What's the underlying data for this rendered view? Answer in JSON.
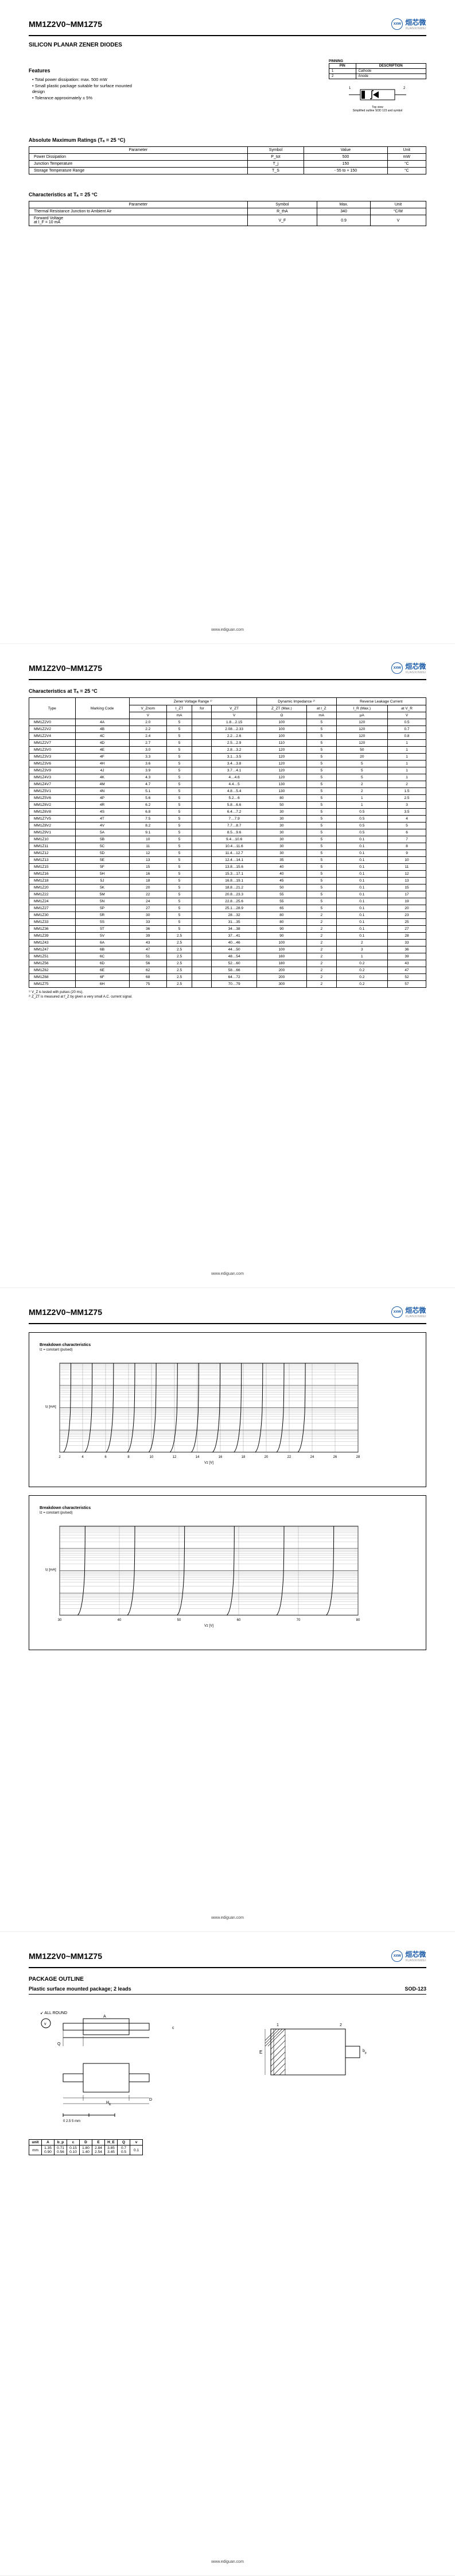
{
  "doc": {
    "part_range": "MM1Z2V0~MM1Z75",
    "subtitle": "SILICON PLANAR ZENER DIODES",
    "brand_cn": "烜芯微",
    "brand_en": "XUANXINWEI",
    "brand_short": "xxw",
    "footer": "www.ediguan.com"
  },
  "features": {
    "title": "Features",
    "items": [
      "Total power dissipation: max. 500 mW",
      "Small plastic package suitable for surface mounted design",
      "Tolerance approximately ± 5%"
    ]
  },
  "pinning": {
    "title": "PINNING",
    "header": [
      "PIN",
      "DESCRIPTION"
    ],
    "rows": [
      [
        "1",
        "Cathode"
      ],
      [
        "2",
        "Anode"
      ]
    ],
    "caption1": "Top view",
    "caption2": "Simplified outline SOD 123 and symbol"
  },
  "abs_max": {
    "title": "Absolute Maximum Ratings (Tₐ = 25 °C)",
    "header": [
      "Parameter",
      "Symbol",
      "Value",
      "Unit"
    ],
    "rows": [
      [
        "Power Dissipation",
        "P_tot",
        "500",
        "mW"
      ],
      [
        "Junction Temperature",
        "T_j",
        "150",
        "°C"
      ],
      [
        "Storage Temperature Range",
        "T_S",
        "- 55 to + 150",
        "°C"
      ]
    ]
  },
  "char25": {
    "title": "Characteristics at Tₐ = 25 °C",
    "header": [
      "Parameter",
      "Symbol",
      "Max.",
      "Unit"
    ],
    "rows": [
      [
        "Thermal Resistance Junction to Ambient Air",
        "R_thA",
        "340",
        "°C/W"
      ],
      [
        "Forward Voltage\nat I_F = 10 mA",
        "V_F",
        "0.9",
        "V"
      ]
    ]
  },
  "char_table": {
    "title": "Characteristics at Tₐ = 25 °C",
    "top_header": [
      "Type",
      "Marking Code",
      "Zener Voltage Range ¹⁾",
      "Dynamic Impedance ²⁾",
      "Reverse Leakage Current"
    ],
    "sub_header": [
      "",
      "",
      "V_Znom",
      "I_ZT",
      "for",
      "V_ZT",
      "Z_ZT (Max.)",
      "at I_Z",
      "I_R (Max.)",
      "at V_R"
    ],
    "units": [
      "",
      "",
      "V",
      "mA",
      "",
      "V",
      "Ω",
      "mA",
      "µA",
      "V"
    ],
    "rows": [
      [
        "MM1Z2V0",
        "4A",
        "2.0",
        "5",
        "",
        "1.8…2.15",
        "100",
        "5",
        "120",
        "0.5"
      ],
      [
        "MM1Z2V2",
        "4B",
        "2.2",
        "5",
        "",
        "2.08…2.33",
        "100",
        "5",
        "120",
        "0.7"
      ],
      [
        "MM1Z2V4",
        "4C",
        "2.4",
        "5",
        "",
        "2.2…2.6",
        "100",
        "5",
        "120",
        "0.8"
      ],
      [
        "MM1Z2V7",
        "4D",
        "2.7",
        "5",
        "",
        "2.5…2.9",
        "110",
        "5",
        "120",
        "1"
      ],
      [
        "MM1Z3V0",
        "4E",
        "3.0",
        "5",
        "",
        "2.8…3.2",
        "120",
        "5",
        "50",
        "1"
      ],
      [
        "MM1Z3V3",
        "4F",
        "3.3",
        "5",
        "",
        "3.1…3.5",
        "120",
        "5",
        "20",
        "1"
      ],
      [
        "MM1Z3V6",
        "4H",
        "3.6",
        "5",
        "",
        "3.4…3.8",
        "120",
        "5",
        "5",
        "1"
      ],
      [
        "MM1Z3V9",
        "4J",
        "3.9",
        "5",
        "",
        "3.7…4.1",
        "120",
        "5",
        "5",
        "1"
      ],
      [
        "MM1Z4V3",
        "4K",
        "4.3",
        "5",
        "",
        "4…4.6",
        "120",
        "5",
        "5",
        "1"
      ],
      [
        "MM1Z4V7",
        "4M",
        "4.7",
        "5",
        "",
        "4.4…5",
        "130",
        "5",
        "2",
        "2"
      ],
      [
        "MM1Z5V1",
        "4N",
        "5.1",
        "5",
        "",
        "4.8…5.4",
        "130",
        "5",
        "2",
        "1.5"
      ],
      [
        "MM1Z5V6",
        "4P",
        "5.6",
        "5",
        "",
        "5.2…6",
        "80",
        "5",
        "1",
        "2.5"
      ],
      [
        "MM1Z6V2",
        "4R",
        "6.2",
        "5",
        "",
        "5.8…6.6",
        "50",
        "5",
        "1",
        "3"
      ],
      [
        "MM1Z6V8",
        "4S",
        "6.8",
        "5",
        "",
        "6.4…7.2",
        "30",
        "5",
        "0.5",
        "3.5"
      ],
      [
        "MM1Z7V5",
        "4T",
        "7.5",
        "5",
        "",
        "7…7.9",
        "30",
        "5",
        "0.5",
        "4"
      ],
      [
        "MM1Z8V2",
        "4V",
        "8.2",
        "5",
        "",
        "7.7…8.7",
        "30",
        "5",
        "0.5",
        "5"
      ],
      [
        "MM1Z9V1",
        "5A",
        "9.1",
        "5",
        "",
        "8.5…9.6",
        "30",
        "5",
        "0.5",
        "6"
      ],
      [
        "MM1Z10",
        "5B",
        "10",
        "5",
        "",
        "9.4…10.6",
        "30",
        "5",
        "0.1",
        "7"
      ],
      [
        "MM1Z11",
        "5C",
        "11",
        "5",
        "",
        "10.4…11.6",
        "30",
        "5",
        "0.1",
        "8"
      ],
      [
        "MM1Z12",
        "5D",
        "12",
        "5",
        "",
        "11.4…12.7",
        "30",
        "5",
        "0.1",
        "9"
      ],
      [
        "MM1Z13",
        "5E",
        "13",
        "5",
        "",
        "12.4…14.1",
        "35",
        "5",
        "0.1",
        "10"
      ],
      [
        "MM1Z15",
        "5F",
        "15",
        "5",
        "",
        "13.8…15.6",
        "40",
        "5",
        "0.1",
        "11"
      ],
      [
        "MM1Z16",
        "5H",
        "16",
        "5",
        "",
        "15.3…17.1",
        "40",
        "5",
        "0.1",
        "12"
      ],
      [
        "MM1Z18",
        "5J",
        "18",
        "5",
        "",
        "16.8…19.1",
        "45",
        "5",
        "0.1",
        "13"
      ],
      [
        "MM1Z20",
        "5K",
        "20",
        "5",
        "",
        "18.8…21.2",
        "50",
        "5",
        "0.1",
        "15"
      ],
      [
        "MM1Z22",
        "5M",
        "22",
        "5",
        "",
        "20.8…23.3",
        "55",
        "5",
        "0.1",
        "17"
      ],
      [
        "MM1Z24",
        "5N",
        "24",
        "5",
        "",
        "22.8…25.6",
        "55",
        "5",
        "0.1",
        "19"
      ],
      [
        "MM1Z27",
        "5P",
        "27",
        "5",
        "",
        "25.1…28.9",
        "65",
        "5",
        "0.1",
        "20"
      ],
      [
        "MM1Z30",
        "5R",
        "30",
        "5",
        "",
        "28…32",
        "80",
        "2",
        "0.1",
        "23"
      ],
      [
        "MM1Z33",
        "5S",
        "33",
        "5",
        "",
        "31…35",
        "80",
        "2",
        "0.1",
        "25"
      ],
      [
        "MM1Z36",
        "5T",
        "36",
        "5",
        "",
        "34…38",
        "90",
        "2",
        "0.1",
        "27"
      ],
      [
        "MM1Z39",
        "5V",
        "39",
        "2.5",
        "",
        "37…41",
        "90",
        "2",
        "0.1",
        "28"
      ],
      [
        "MM1Z43",
        "6A",
        "43",
        "2.5",
        "",
        "40…46",
        "100",
        "2",
        "2",
        "33"
      ],
      [
        "MM1Z47",
        "6B",
        "47",
        "2.5",
        "",
        "44…50",
        "100",
        "2",
        "3",
        "36"
      ],
      [
        "MM1Z51",
        "6C",
        "51",
        "2.5",
        "",
        "48…54",
        "160",
        "2",
        "1",
        "39"
      ],
      [
        "MM1Z56",
        "6D",
        "56",
        "2.5",
        "",
        "52…60",
        "180",
        "2",
        "0.2",
        "43"
      ],
      [
        "MM1Z62",
        "6E",
        "62",
        "2.5",
        "",
        "58…66",
        "200",
        "2",
        "0.2",
        "47"
      ],
      [
        "MM1Z68",
        "6F",
        "68",
        "2.5",
        "",
        "64…72",
        "200",
        "2",
        "0.2",
        "52"
      ],
      [
        "MM1Z75",
        "6H",
        "75",
        "2.5",
        "",
        "70…79",
        "300",
        "2",
        "0.2",
        "57"
      ]
    ],
    "notes": [
      "¹⁾ V_Z is tested with pulses (20 ms).",
      "²⁾ Z_ZT is measured at f_Z by given a very small A.C. current signal."
    ]
  },
  "charts": {
    "c1_title": "Breakdown characteristics",
    "c1_sub": "Iz = constant (pulsed)",
    "c2_title": "Breakdown characteristics",
    "c2_sub": "Iz = constant (pulsed)",
    "x_label": "Vz [V]",
    "y_label": "Iz [mA]",
    "grid_color": "#888",
    "line_color": "#000",
    "x_ticks_1": [
      "2",
      "4",
      "6",
      "8",
      "10",
      "12",
      "14",
      "16",
      "18",
      "20",
      "22",
      "24",
      "26",
      "28"
    ],
    "x_ticks_2": [
      "30",
      "40",
      "50",
      "60",
      "70",
      "80"
    ]
  },
  "package": {
    "title": "PACKAGE OUTLINE",
    "subtitle": "Plastic surface mounted package; 2 leads",
    "code": "SOD-123",
    "scale_label": "0    2.5   5 mm",
    "dims_header": [
      "unit",
      "A",
      "b_p",
      "c",
      "D",
      "E",
      "H_E",
      "Q",
      "v"
    ],
    "dims_rows": [
      [
        "mm",
        "1.35\n0.90",
        "0.71\n0.56",
        "0.15\n0.10",
        "1.80\n1.40",
        "2.84\n2.54",
        "3.85\n3.45",
        "0.7\n0.5",
        "0.1"
      ]
    ]
  }
}
